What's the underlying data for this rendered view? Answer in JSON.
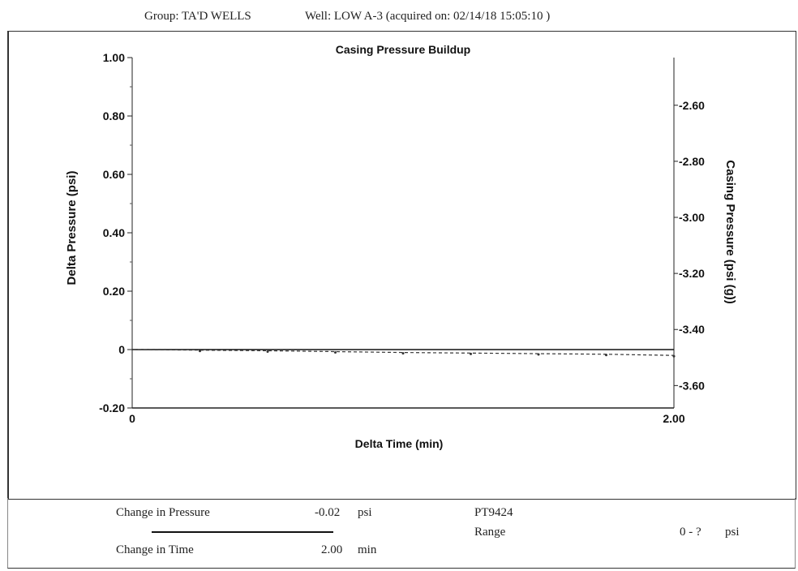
{
  "header": {
    "group": "Group: TA'D WELLS",
    "well": "Well: LOW A-3 (acquired on: 02/14/18 15:05:10 )"
  },
  "footer": {
    "change_pressure_label": "Change in Pressure",
    "change_pressure_value": "-0.02",
    "change_pressure_unit": "psi",
    "change_time_label": "Change in Time",
    "change_time_value": "2.00",
    "change_time_unit": "min",
    "sensor": "PT9424",
    "range_label": "Range",
    "range_value": "0 - ?",
    "range_unit": "psi"
  },
  "chart_data": {
    "type": "line",
    "title": "Casing Pressure Buildup",
    "xlabel": "Delta Time (min)",
    "ylabel": "Delta Pressure (psi)",
    "y2label": "Casing Pressure (psi (g))",
    "xlim": [
      0,
      2.0
    ],
    "ylim": [
      -0.2,
      1.0
    ],
    "y2lim": [
      -3.68,
      -2.43
    ],
    "x_ticks": [
      "0",
      "2.00"
    ],
    "y_ticks": [
      "1.00",
      "0.80",
      "0.60",
      "0.40",
      "0.20",
      "0",
      "-0.20"
    ],
    "y_tick_values": [
      1.0,
      0.8,
      0.6,
      0.4,
      0.2,
      0,
      -0.2
    ],
    "y2_ticks": [
      "-2.60",
      "-2.80",
      "-3.00",
      "-3.20",
      "-3.40",
      "-3.60"
    ],
    "y2_tick_values": [
      -2.6,
      -2.8,
      -3.0,
      -3.2,
      -3.4,
      -3.6
    ],
    "grid": false,
    "series": [
      {
        "style": "solid",
        "color": "#111111",
        "x": [
          0,
          2.0
        ],
        "y": [
          0,
          0
        ]
      },
      {
        "style": "dashed",
        "color": "#333333",
        "x": [
          0,
          0.25,
          0.5,
          0.75,
          1.0,
          1.25,
          1.5,
          1.75,
          2.0
        ],
        "y": [
          0,
          -0.002,
          -0.004,
          -0.007,
          -0.01,
          -0.012,
          -0.014,
          -0.016,
          -0.02
        ]
      }
    ]
  }
}
